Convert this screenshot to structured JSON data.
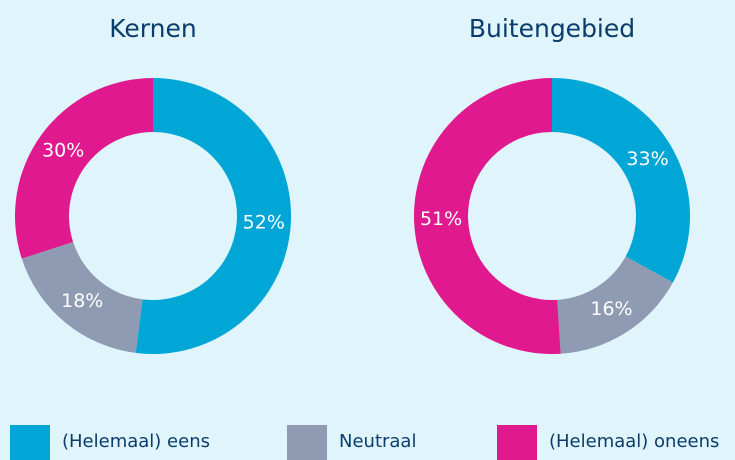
{
  "chart_data": [
    {
      "type": "donut",
      "title": "Kernen",
      "categories": [
        "(Helemaal) eens",
        "Neutraal",
        "(Helemaal) oneens"
      ],
      "values": [
        52,
        18,
        30
      ],
      "value_labels": [
        "52%",
        "18%",
        "30%"
      ],
      "colors": [
        "#00a6d6",
        "#8e9bb2",
        "#e0198e"
      ]
    },
    {
      "type": "donut",
      "title": "Buitengebied",
      "categories": [
        "(Helemaal) eens",
        "Neutraal",
        "(Helemaal) oneens"
      ],
      "values": [
        33,
        16,
        51
      ],
      "value_labels": [
        "33%",
        "16%",
        "51%"
      ],
      "colors": [
        "#00a6d6",
        "#8e9bb2",
        "#e0198e"
      ]
    }
  ]
}
